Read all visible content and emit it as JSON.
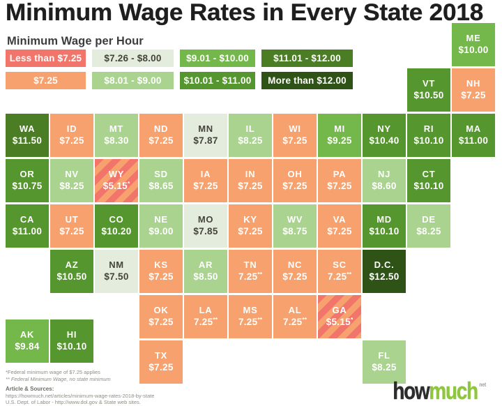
{
  "title": "Minimum Wage Rates in Every State 2018",
  "legend": {
    "title": "Minimum Wage per Hour",
    "rows": [
      [
        {
          "key": "lt725",
          "label": "Less than $7.25"
        },
        {
          "key": "r726_800",
          "label": "$7.26 - $8.00"
        },
        {
          "key": "r901_1000",
          "label": "$9.01 - $10.00"
        },
        {
          "key": "r1101_1200",
          "label": "$11.01 - $12.00"
        }
      ],
      [
        {
          "key": "eq725",
          "label": "$7.25"
        },
        {
          "key": "r801_900",
          "label": "$8.01 - $9.00"
        },
        {
          "key": "r1001_1100",
          "label": "$10.01 - $11.00"
        },
        {
          "key": "gt1200",
          "label": "More than $12.00"
        }
      ]
    ]
  },
  "chart_data": {
    "type": "tile_map",
    "title": "Minimum Wage Rates in Every State 2018",
    "unit": "USD per hour",
    "categories": {
      "lt725": {
        "label": "Less than $7.25",
        "color": "#f2756b",
        "stripe_color": "#f7a26e",
        "text": "#ffffff"
      },
      "eq725": {
        "label": "$7.25",
        "color": "#f7a26e",
        "text": "#ffffff"
      },
      "r726_800": {
        "label": "$7.26 - $8.00",
        "color": "#e4ecdd",
        "text": "#45443c"
      },
      "r801_900": {
        "label": "$8.01 - $9.00",
        "color": "#aad390",
        "text": "#ffffff"
      },
      "r901_1000": {
        "label": "$9.01 - $10.00",
        "color": "#74b74a",
        "text": "#ffffff"
      },
      "r1001_1100": {
        "label": "$10.01 - $11.00",
        "color": "#55962e",
        "text": "#ffffff"
      },
      "r1101_1200": {
        "label": "$11.01 - $12.00",
        "color": "#4a7d24",
        "text": "#ffffff"
      },
      "gt1200": {
        "label": "More than $12.00",
        "color": "#2f5316",
        "text": "#ffffff"
      }
    },
    "states": [
      {
        "abbr": "ME",
        "value": "$10.00",
        "wage": 10.0,
        "category": "r901_1000",
        "col": 10,
        "row": 0
      },
      {
        "abbr": "VT",
        "value": "$10.50",
        "wage": 10.5,
        "category": "r1001_1100",
        "col": 9,
        "row": 1
      },
      {
        "abbr": "NH",
        "value": "$7.25",
        "wage": 7.25,
        "category": "eq725",
        "col": 10,
        "row": 1
      },
      {
        "abbr": "WA",
        "value": "$11.50",
        "wage": 11.5,
        "category": "r1101_1200",
        "col": 0,
        "row": 2
      },
      {
        "abbr": "ID",
        "value": "$7.25",
        "wage": 7.25,
        "category": "eq725",
        "col": 1,
        "row": 2
      },
      {
        "abbr": "MT",
        "value": "$8.30",
        "wage": 8.3,
        "category": "r801_900",
        "col": 2,
        "row": 2
      },
      {
        "abbr": "ND",
        "value": "$7.25",
        "wage": 7.25,
        "category": "eq725",
        "col": 3,
        "row": 2
      },
      {
        "abbr": "MN",
        "value": "$7.87",
        "wage": 7.87,
        "category": "r726_800",
        "col": 4,
        "row": 2
      },
      {
        "abbr": "IL",
        "value": "$8.25",
        "wage": 8.25,
        "category": "r801_900",
        "col": 5,
        "row": 2
      },
      {
        "abbr": "WI",
        "value": "$7.25",
        "wage": 7.25,
        "category": "eq725",
        "col": 6,
        "row": 2
      },
      {
        "abbr": "MI",
        "value": "$9.25",
        "wage": 9.25,
        "category": "r901_1000",
        "col": 7,
        "row": 2
      },
      {
        "abbr": "NY",
        "value": "$10.40",
        "wage": 10.4,
        "category": "r1001_1100",
        "col": 8,
        "row": 2
      },
      {
        "abbr": "RI",
        "value": "$10.10",
        "wage": 10.1,
        "category": "r1001_1100",
        "col": 9,
        "row": 2
      },
      {
        "abbr": "MA",
        "value": "$11.00",
        "wage": 11.0,
        "category": "r1001_1100",
        "col": 10,
        "row": 2
      },
      {
        "abbr": "OR",
        "value": "$10.75",
        "wage": 10.75,
        "category": "r1001_1100",
        "col": 0,
        "row": 3
      },
      {
        "abbr": "NV",
        "value": "$8.25",
        "wage": 8.25,
        "category": "r801_900",
        "col": 1,
        "row": 3
      },
      {
        "abbr": "WY",
        "value": "$5.15*",
        "wage": 5.15,
        "category": "lt725",
        "col": 2,
        "row": 3
      },
      {
        "abbr": "SD",
        "value": "$8.65",
        "wage": 8.65,
        "category": "r801_900",
        "col": 3,
        "row": 3
      },
      {
        "abbr": "IA",
        "value": "$7.25",
        "wage": 7.25,
        "category": "eq725",
        "col": 4,
        "row": 3
      },
      {
        "abbr": "IN",
        "value": "$7.25",
        "wage": 7.25,
        "category": "eq725",
        "col": 5,
        "row": 3
      },
      {
        "abbr": "OH",
        "value": "$7.25",
        "wage": 7.25,
        "category": "eq725",
        "col": 6,
        "row": 3
      },
      {
        "abbr": "PA",
        "value": "$7.25",
        "wage": 7.25,
        "category": "eq725",
        "col": 7,
        "row": 3
      },
      {
        "abbr": "NJ",
        "value": "$8.60",
        "wage": 8.6,
        "category": "r801_900",
        "col": 8,
        "row": 3
      },
      {
        "abbr": "CT",
        "value": "$10.10",
        "wage": 10.1,
        "category": "r1001_1100",
        "col": 9,
        "row": 3
      },
      {
        "abbr": "CA",
        "value": "$11.00",
        "wage": 11.0,
        "category": "r1001_1100",
        "col": 0,
        "row": 4
      },
      {
        "abbr": "UT",
        "value": "$7.25",
        "wage": 7.25,
        "category": "eq725",
        "col": 1,
        "row": 4
      },
      {
        "abbr": "CO",
        "value": "$10.20",
        "wage": 10.2,
        "category": "r1001_1100",
        "col": 2,
        "row": 4
      },
      {
        "abbr": "NE",
        "value": "$9.00",
        "wage": 9.0,
        "category": "r801_900",
        "col": 3,
        "row": 4
      },
      {
        "abbr": "MO",
        "value": "$7.85",
        "wage": 7.85,
        "category": "r726_800",
        "col": 4,
        "row": 4
      },
      {
        "abbr": "KY",
        "value": "$7.25",
        "wage": 7.25,
        "category": "eq725",
        "col": 5,
        "row": 4
      },
      {
        "abbr": "WV",
        "value": "$8.75",
        "wage": 8.75,
        "category": "r801_900",
        "col": 6,
        "row": 4
      },
      {
        "abbr": "VA",
        "value": "$7.25",
        "wage": 7.25,
        "category": "eq725",
        "col": 7,
        "row": 4
      },
      {
        "abbr": "MD",
        "value": "$10.10",
        "wage": 10.1,
        "category": "r1001_1100",
        "col": 8,
        "row": 4
      },
      {
        "abbr": "DE",
        "value": "$8.25",
        "wage": 8.25,
        "category": "r801_900",
        "col": 9,
        "row": 4
      },
      {
        "abbr": "AZ",
        "value": "$10.50",
        "wage": 10.5,
        "category": "r1001_1100",
        "col": 1,
        "row": 5
      },
      {
        "abbr": "NM",
        "value": "$7.50",
        "wage": 7.5,
        "category": "r726_800",
        "col": 2,
        "row": 5
      },
      {
        "abbr": "KS",
        "value": "$7.25",
        "wage": 7.25,
        "category": "eq725",
        "col": 3,
        "row": 5
      },
      {
        "abbr": "AR",
        "value": "$8.50",
        "wage": 8.5,
        "category": "r801_900",
        "col": 4,
        "row": 5
      },
      {
        "abbr": "TN",
        "value": "7.25**",
        "wage": 7.25,
        "category": "eq725",
        "col": 5,
        "row": 5
      },
      {
        "abbr": "NC",
        "value": "$7.25",
        "wage": 7.25,
        "category": "eq725",
        "col": 6,
        "row": 5
      },
      {
        "abbr": "SC",
        "value": "7.25**",
        "wage": 7.25,
        "category": "eq725",
        "col": 7,
        "row": 5
      },
      {
        "abbr": "D.C.",
        "value": "$12.50",
        "wage": 12.5,
        "category": "gt1200",
        "col": 8,
        "row": 5
      },
      {
        "abbr": "OK",
        "value": "$7.25",
        "wage": 7.25,
        "category": "eq725",
        "col": 3,
        "row": 6
      },
      {
        "abbr": "LA",
        "value": "7.25**",
        "wage": 7.25,
        "category": "eq725",
        "col": 4,
        "row": 6
      },
      {
        "abbr": "MS",
        "value": "7.25**",
        "wage": 7.25,
        "category": "eq725",
        "col": 5,
        "row": 6
      },
      {
        "abbr": "AL",
        "value": "7.25**",
        "wage": 7.25,
        "category": "eq725",
        "col": 6,
        "row": 6
      },
      {
        "abbr": "GA",
        "value": "$5.15*",
        "wage": 5.15,
        "category": "lt725",
        "col": 7,
        "row": 6
      },
      {
        "abbr": "AK",
        "value": "$9.84",
        "wage": 9.84,
        "category": "r901_1000",
        "col": 0,
        "row": 6.54
      },
      {
        "abbr": "HI",
        "value": "$10.10",
        "wage": 10.1,
        "category": "r1001_1100",
        "col": 1,
        "row": 6.54
      },
      {
        "abbr": "TX",
        "value": "$7.25",
        "wage": 7.25,
        "category": "eq725",
        "col": 3,
        "row": 7
      },
      {
        "abbr": "FL",
        "value": "$8.25",
        "wage": 8.25,
        "category": "r801_900",
        "col": 8,
        "row": 7
      }
    ]
  },
  "footnotes": {
    "fn1": "*Federal minimum wage of $7.25 applies",
    "fn2": "** Federal Minimum Wage, no state minimum"
  },
  "sources": {
    "label": "Article & Sources:",
    "line1": "https://howmuch.net/articles/minimum-wage-rates-2018-by-state",
    "line2": "U.S. Dept. of Labor -  http://www.dol.gov & State web sites."
  },
  "logo": {
    "part1": "how",
    "part2": "much",
    "suffix": "net"
  }
}
